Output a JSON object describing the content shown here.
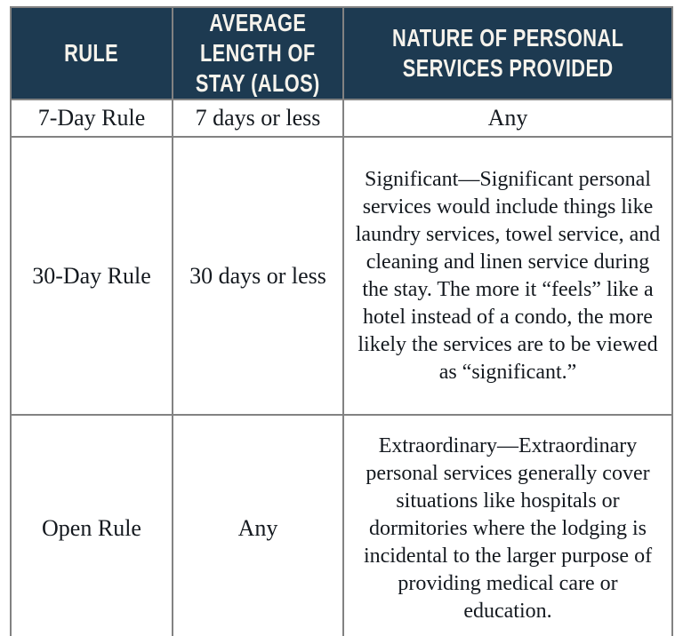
{
  "table": {
    "columns": [
      {
        "label": "RULE"
      },
      {
        "label": "AVERAGE LENGTH OF STAY (ALOS)"
      },
      {
        "label": "NATURE OF PERSONAL SERVICES PROVIDED"
      }
    ],
    "rows": [
      {
        "rule": "7-Day Rule",
        "alos": "7 days or less",
        "services": "Any"
      },
      {
        "rule": "30-Day Rule",
        "alos": "30 days or less",
        "services": "Significant—Significant personal services would include things like laundry services, towel service, and cleaning and linen service during the stay. The more it “feels” like a hotel instead of a condo, the more likely the services are to be viewed as “significant.”"
      },
      {
        "rule": "Open Rule",
        "alos": "Any",
        "services": "Extraordinary—Extraordinary personal services generally cover situations like hospitals or dormitories where the lodging is incidental to the larger purpose of providing medical care or education."
      }
    ],
    "colors": {
      "header_bg": "#1d3a51",
      "header_text": "#f6f3ec",
      "border": "#828282",
      "body_text": "#14191f"
    }
  }
}
